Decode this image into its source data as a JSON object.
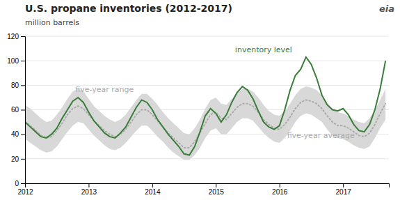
{
  "chart_data": {
    "type": "line",
    "title": "U.S. propane inventories (2012-2017)",
    "ylabel": "million barrels",
    "xlim": [
      2012.0,
      2017.72
    ],
    "xticks": [
      2012,
      2013,
      2014,
      2015,
      2016,
      2017
    ],
    "ylim": [
      0,
      120
    ],
    "yticks": [
      0,
      20,
      40,
      60,
      80,
      100,
      120
    ],
    "grid": true,
    "x": [
      2012.0,
      2012.083,
      2012.167,
      2012.25,
      2012.333,
      2012.417,
      2012.5,
      2012.583,
      2012.667,
      2012.75,
      2012.833,
      2012.917,
      2013.0,
      2013.083,
      2013.167,
      2013.25,
      2013.333,
      2013.417,
      2013.5,
      2013.583,
      2013.667,
      2013.75,
      2013.833,
      2013.917,
      2014.0,
      2014.083,
      2014.167,
      2014.25,
      2014.333,
      2014.417,
      2014.5,
      2014.583,
      2014.667,
      2014.75,
      2014.833,
      2014.917,
      2015.0,
      2015.083,
      2015.167,
      2015.25,
      2015.333,
      2015.417,
      2015.5,
      2015.583,
      2015.667,
      2015.75,
      2015.833,
      2015.917,
      2016.0,
      2016.083,
      2016.167,
      2016.25,
      2016.333,
      2016.417,
      2016.5,
      2016.583,
      2016.667,
      2016.75,
      2016.833,
      2016.917,
      2017.0,
      2017.083,
      2017.167,
      2017.25,
      2017.333,
      2017.417,
      2017.5,
      2017.583,
      2017.667
    ],
    "series": [
      {
        "type": "area",
        "color": "#d8d8d8",
        "low": [
          36,
          33,
          30,
          27,
          25,
          26,
          30,
          36,
          42,
          47,
          50,
          49,
          44,
          39,
          35,
          31,
          28,
          27,
          29,
          33,
          38,
          43,
          47,
          47,
          43,
          38,
          34,
          29,
          25,
          22,
          19,
          19,
          23,
          29,
          37,
          43,
          45,
          40,
          40,
          45,
          50,
          53,
          53,
          51,
          46,
          41,
          37,
          34,
          33,
          37,
          43,
          50,
          55,
          57,
          56,
          53,
          50,
          44,
          39,
          37,
          36,
          34,
          31,
          29,
          28,
          30,
          37,
          45,
          52
        ],
        "high": [
          64,
          61,
          57,
          53,
          50,
          51,
          56,
          62,
          69,
          75,
          77,
          75,
          69,
          63,
          59,
          55,
          52,
          50,
          52,
          56,
          62,
          68,
          73,
          73,
          69,
          64,
          58,
          53,
          49,
          45,
          41,
          40,
          45,
          52,
          61,
          68,
          70,
          65,
          64,
          69,
          74,
          77,
          77,
          75,
          70,
          64,
          59,
          56,
          55,
          59,
          65,
          72,
          77,
          79,
          78,
          76,
          72,
          66,
          61,
          58,
          57,
          55,
          52,
          50,
          49,
          53,
          60,
          68,
          77
        ]
      },
      {
        "type": "line",
        "color": "#aaaaaa",
        "line_style": "dotted",
        "values": [
          50,
          47,
          43,
          39,
          37,
          38,
          43,
          49,
          56,
          61,
          63,
          61,
          56,
          51,
          47,
          43,
          40,
          38,
          40,
          44,
          50,
          56,
          60,
          60,
          56,
          51,
          46,
          41,
          37,
          33,
          29,
          29,
          34,
          41,
          49,
          56,
          58,
          53,
          52,
          57,
          62,
          65,
          65,
          63,
          58,
          52,
          48,
          45,
          44,
          48,
          54,
          61,
          66,
          68,
          67,
          65,
          61,
          55,
          50,
          47,
          47,
          45,
          42,
          39,
          38,
          41,
          48,
          57,
          65
        ]
      },
      {
        "type": "line",
        "color": "#3a7d3a",
        "line_style": "solid",
        "values": [
          50,
          46,
          42,
          38,
          37,
          40,
          45,
          53,
          60,
          67,
          70,
          66,
          58,
          51,
          46,
          41,
          38,
          37,
          41,
          46,
          54,
          62,
          68,
          66,
          60,
          52,
          46,
          40,
          35,
          30,
          24,
          23,
          30,
          42,
          55,
          61,
          57,
          50,
          56,
          66,
          74,
          79,
          76,
          69,
          59,
          50,
          46,
          44,
          47,
          60,
          76,
          88,
          93,
          103,
          97,
          86,
          72,
          64,
          60,
          59,
          61,
          56,
          48,
          43,
          42,
          48,
          60,
          77,
          100
        ]
      }
    ],
    "annotations": [
      {
        "text": "inventory level",
        "x": 2015.75,
        "y": 105,
        "color": "#3a7d3a"
      },
      {
        "text": "five-year range",
        "x": 2013.25,
        "y": 73,
        "color": "#aaaaaa"
      },
      {
        "text": "five-year average",
        "x": 2016.65,
        "y": 35,
        "color": "#aaaaaa"
      },
      {
        "text": "eia"
      }
    ]
  }
}
